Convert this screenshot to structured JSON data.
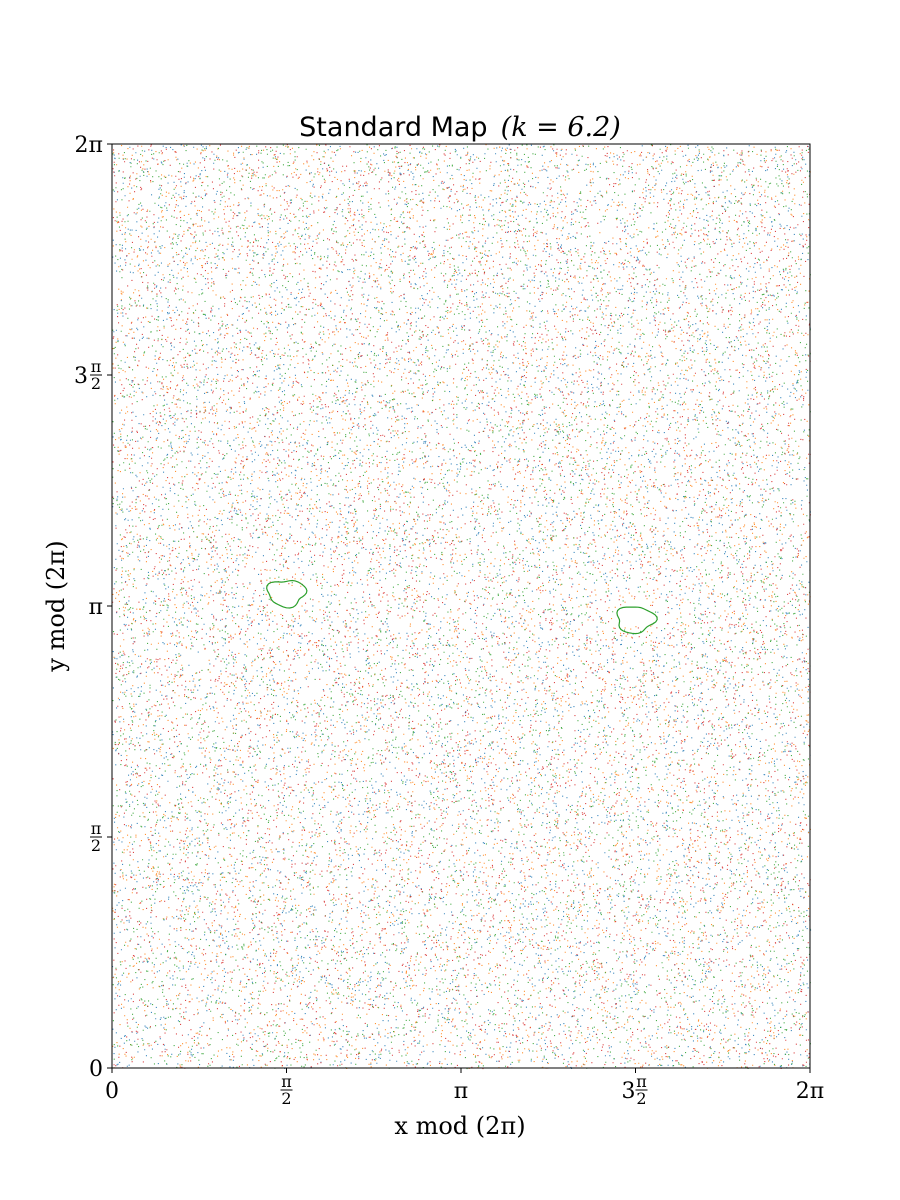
{
  "chart_data": {
    "type": "scatter",
    "title": "Standard Map (k = 6.2)",
    "title_parts": {
      "text": "Standard Map",
      "math": "(k = 6.2)"
    },
    "k": 6.2,
    "xlabel": "x mod (2π)",
    "ylabel": "y mod (2π)",
    "xlim": [
      0,
      6.283185307
    ],
    "ylim": [
      0,
      6.283185307
    ],
    "x_ticks": [
      {
        "value": 0,
        "label": "0"
      },
      {
        "value": 1.570796327,
        "label": "π/2"
      },
      {
        "value": 3.141592654,
        "label": "π"
      },
      {
        "value": 4.71238898,
        "label": "3π/2"
      },
      {
        "value": 6.283185307,
        "label": "2π"
      }
    ],
    "y_ticks": [
      {
        "value": 0,
        "label": "0"
      },
      {
        "value": 1.570796327,
        "label": "π/2"
      },
      {
        "value": 3.141592654,
        "label": "π"
      },
      {
        "value": 4.71238898,
        "label": "3π/2"
      },
      {
        "value": 6.283185307,
        "label": "2π"
      }
    ],
    "grid": false,
    "series": [
      {
        "color": "#1f77b4",
        "kind": "chaotic-sea"
      },
      {
        "color": "#ff7f0e",
        "kind": "chaotic-sea"
      },
      {
        "color": "#2ca02c",
        "kind": "chaotic-sea"
      },
      {
        "color": "#d62728",
        "kind": "chaotic-sea"
      }
    ],
    "islands": [
      {
        "color": "#2ca02c",
        "center": [
          1.57,
          3.23
        ],
        "semi_axes": [
          0.17,
          0.09
        ]
      },
      {
        "color": "#2ca02c",
        "center": [
          4.71,
          3.05
        ],
        "semi_axes": [
          0.17,
          0.09
        ]
      }
    ]
  }
}
